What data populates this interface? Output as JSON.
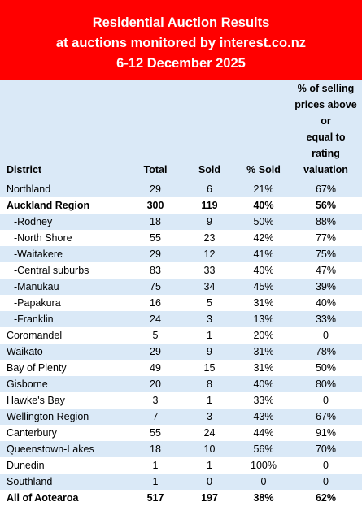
{
  "header": {
    "line1": "Residential Auction Results",
    "line2": "at auctions monitored by interest.co.nz",
    "line3": "6-12 December 2025",
    "bg_color": "#ff0000"
  },
  "columns": {
    "district": "District",
    "total": "Total",
    "sold": "Sold",
    "pct_sold": "% Sold",
    "pct_above_line1": "% of selling",
    "pct_above_line2": "prices above or",
    "pct_above_line3": "equal to rating",
    "pct_above_line4": "valuation"
  },
  "rows": [
    {
      "district": "Northland",
      "total": "29",
      "sold": "6",
      "pct_sold": "21%",
      "pct_above": "67%"
    },
    {
      "district": "Auckland Region",
      "total": "300",
      "sold": "119",
      "pct_sold": "40%",
      "pct_above": "56%"
    },
    {
      "district": "-Rodney",
      "total": "18",
      "sold": "9",
      "pct_sold": "50%",
      "pct_above": "88%"
    },
    {
      "district": "-North Shore",
      "total": "55",
      "sold": "23",
      "pct_sold": "42%",
      "pct_above": "77%"
    },
    {
      "district": "-Waitakere",
      "total": "29",
      "sold": "12",
      "pct_sold": "41%",
      "pct_above": "75%"
    },
    {
      "district": "-Central suburbs",
      "total": "83",
      "sold": "33",
      "pct_sold": "40%",
      "pct_above": "47%"
    },
    {
      "district": "-Manukau",
      "total": "75",
      "sold": "34",
      "pct_sold": "45%",
      "pct_above": "39%"
    },
    {
      "district": "-Papakura",
      "total": "16",
      "sold": "5",
      "pct_sold": "31%",
      "pct_above": "40%"
    },
    {
      "district": "-Franklin",
      "total": "24",
      "sold": "3",
      "pct_sold": "13%",
      "pct_above": "33%"
    },
    {
      "district": "Coromandel",
      "total": "5",
      "sold": "1",
      "pct_sold": "20%",
      "pct_above": "0"
    },
    {
      "district": "Waikato",
      "total": "29",
      "sold": "9",
      "pct_sold": "31%",
      "pct_above": "78%"
    },
    {
      "district": "Bay of Plenty",
      "total": "49",
      "sold": "15",
      "pct_sold": "31%",
      "pct_above": "50%"
    },
    {
      "district": "Gisborne",
      "total": "20",
      "sold": "8",
      "pct_sold": "40%",
      "pct_above": "80%"
    },
    {
      "district": "Hawke's Bay",
      "total": "3",
      "sold": "1",
      "pct_sold": "33%",
      "pct_above": "0"
    },
    {
      "district": "Wellington Region",
      "total": "7",
      "sold": "3",
      "pct_sold": "43%",
      "pct_above": "67%"
    },
    {
      "district": "Canterbury",
      "total": "55",
      "sold": "24",
      "pct_sold": "44%",
      "pct_above": "91%"
    },
    {
      "district": "Queenstown-Lakes",
      "total": "18",
      "sold": "10",
      "pct_sold": "56%",
      "pct_above": "70%"
    },
    {
      "district": "Dunedin",
      "total": "1",
      "sold": "1",
      "pct_sold": "100%",
      "pct_above": "0"
    },
    {
      "district": "Southland",
      "total": "1",
      "sold": "0",
      "pct_sold": "0",
      "pct_above": "0"
    },
    {
      "district": "All of Aotearoa",
      "total": "517",
      "sold": "197",
      "pct_sold": "38%",
      "pct_above": "62%"
    }
  ]
}
